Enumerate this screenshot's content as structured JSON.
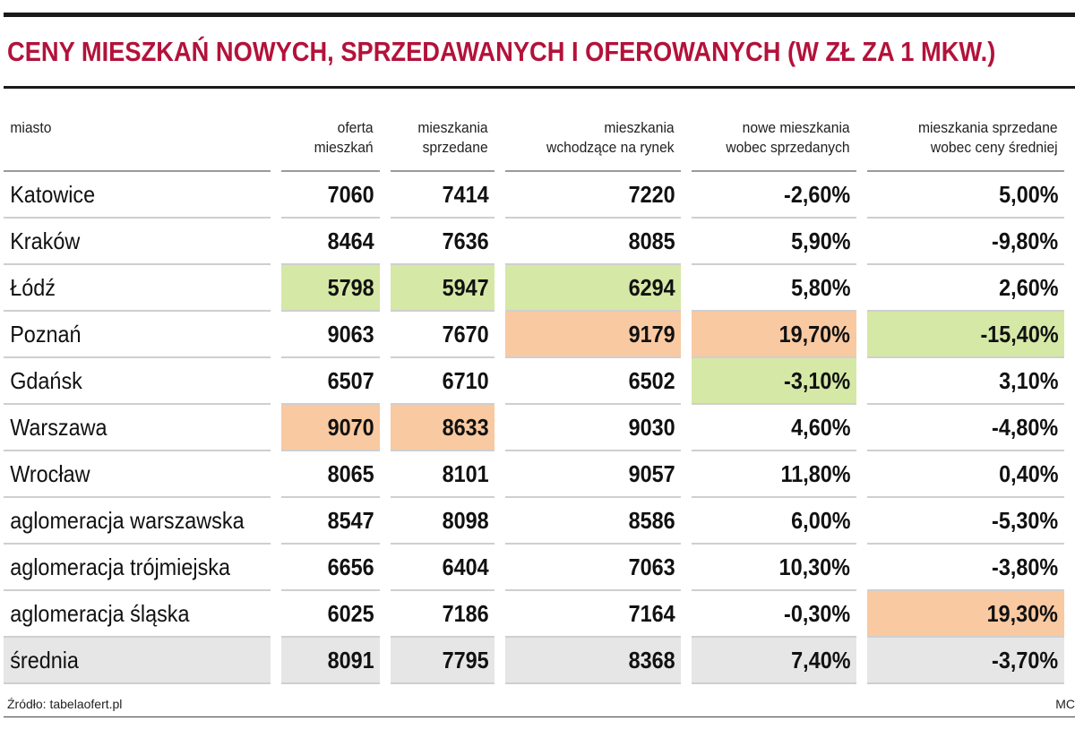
{
  "chart_data": {
    "type": "table",
    "title": "CENY MIESZKAŃ NOWYCH, SPRZEDAWANYCH I OFEROWANYCH (W ZŁ ZA 1 MKW.)",
    "columns": [
      [
        "miasto"
      ],
      [
        "oferta",
        "mieszkań"
      ],
      [
        "mieszkania",
        "sprzedane"
      ],
      [
        "mieszkania",
        "wchodzące na rynek"
      ],
      [
        "nowe mieszkania",
        "wobec sprzedanych"
      ],
      [
        "mieszkania sprzedane",
        "wobec ceny średniej"
      ]
    ],
    "rows": [
      {
        "city": "Katowice",
        "values": [
          "7060",
          "7414",
          "7220",
          "-2,60%",
          "5,00%"
        ],
        "highlight": [
          "",
          "",
          "",
          "",
          ""
        ]
      },
      {
        "city": "Kraków",
        "values": [
          "8464",
          "7636",
          "8085",
          "5,90%",
          "-9,80%"
        ],
        "highlight": [
          "",
          "",
          "",
          "",
          ""
        ]
      },
      {
        "city": "Łódź",
        "values": [
          "5798",
          "5947",
          "6294",
          "5,80%",
          "2,60%"
        ],
        "highlight": [
          "green",
          "green",
          "green",
          "",
          ""
        ]
      },
      {
        "city": "Poznań",
        "values": [
          "9063",
          "7670",
          "9179",
          "19,70%",
          "-15,40%"
        ],
        "highlight": [
          "",
          "",
          "orange",
          "orange",
          "green"
        ]
      },
      {
        "city": "Gdańsk",
        "values": [
          "6507",
          "6710",
          "6502",
          "-3,10%",
          "3,10%"
        ],
        "highlight": [
          "",
          "",
          "",
          "green",
          ""
        ]
      },
      {
        "city": "Warszawa",
        "values": [
          "9070",
          "8633",
          "9030",
          "4,60%",
          "-4,80%"
        ],
        "highlight": [
          "orange",
          "orange",
          "",
          "",
          ""
        ]
      },
      {
        "city": "Wrocław",
        "values": [
          "8065",
          "8101",
          "9057",
          "11,80%",
          "0,40%"
        ],
        "highlight": [
          "",
          "",
          "",
          "",
          ""
        ]
      },
      {
        "city": "aglomeracja warszawska",
        "values": [
          "8547",
          "8098",
          "8586",
          "6,00%",
          "-5,30%"
        ],
        "highlight": [
          "",
          "",
          "",
          "",
          ""
        ]
      },
      {
        "city": "aglomeracja trójmiejska",
        "values": [
          "6656",
          "6404",
          "7063",
          "10,30%",
          "-3,80%"
        ],
        "highlight": [
          "",
          "",
          "",
          "",
          ""
        ]
      },
      {
        "city": "aglomeracja śląska",
        "values": [
          "6025",
          "7186",
          "7164",
          "-0,30%",
          "19,30%"
        ],
        "highlight": [
          "",
          "",
          "",
          "",
          "orange"
        ]
      },
      {
        "city": "średnia",
        "values": [
          "8091",
          "7795",
          "8368",
          "7,40%",
          "-3,70%"
        ],
        "highlight": [
          "",
          "",
          "",
          "",
          ""
        ],
        "average": true
      }
    ],
    "colors": {
      "title": "#b3123a",
      "green": "#d6e8a6",
      "orange": "#f9c9a1",
      "average_row": "#e6e6e6"
    }
  },
  "source": "Źródło: tabelaofert.pl",
  "credit": "MC"
}
